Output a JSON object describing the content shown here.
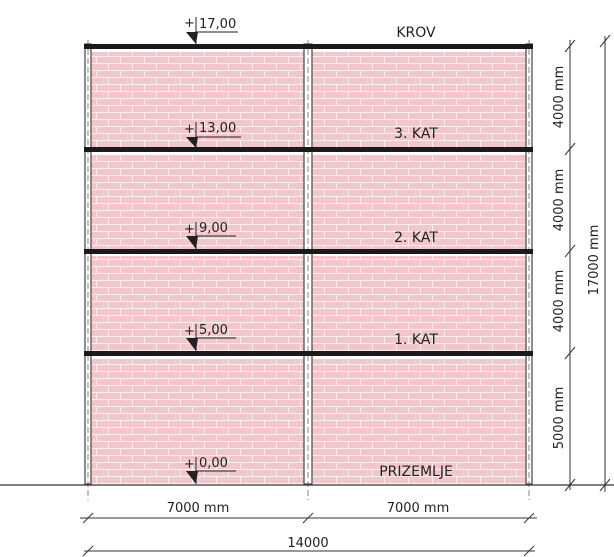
{
  "floors": [
    {
      "name": "KROV",
      "elevation": "17,00"
    },
    {
      "name": "3. KAT",
      "elevation": "13,00"
    },
    {
      "name": "2. KAT",
      "elevation": "9,00"
    },
    {
      "name": "1. KAT",
      "elevation": "5,00"
    },
    {
      "name": "PRIZEMLJE",
      "elevation": "0,00"
    }
  ],
  "elevation_sign": "+",
  "dimensions": {
    "bay_left": "7000 mm",
    "bay_right": "7000 mm",
    "total_width": "14000",
    "storey_heights": [
      "4000 mm",
      "4000 mm",
      "4000 mm",
      "5000 mm"
    ],
    "total_height": "17000 mm"
  },
  "colors": {
    "brick_fill": "#f3c6cc",
    "brick_line": "#faf0f2",
    "slab": "#1a1a1a",
    "line": "#333333"
  }
}
